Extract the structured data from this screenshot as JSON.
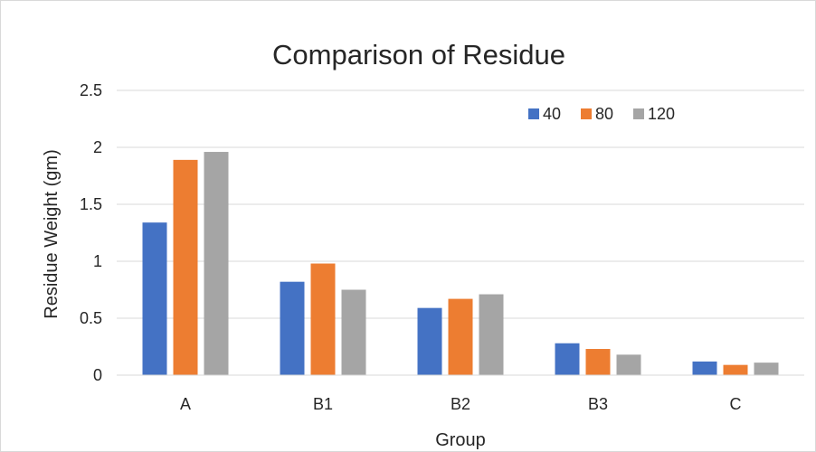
{
  "chart_data": {
    "type": "bar",
    "title": "Comparison of Residue",
    "xlabel": "Group",
    "ylabel": "Residue Weight (gm)",
    "categories": [
      "A",
      "B1",
      "B2",
      "B3",
      "C"
    ],
    "series": [
      {
        "name": "40",
        "values": [
          1.34,
          0.82,
          0.59,
          0.28,
          0.12
        ],
        "color": "#4472C4"
      },
      {
        "name": "80",
        "values": [
          1.89,
          0.98,
          0.67,
          0.23,
          0.09
        ],
        "color": "#ED7D31"
      },
      {
        "name": "120",
        "values": [
          1.96,
          0.75,
          0.71,
          0.18,
          0.11
        ],
        "color": "#A5A5A5"
      }
    ],
    "ylim": [
      0,
      2.5
    ],
    "yticks": [
      "0",
      "0.5",
      "1",
      "1.5",
      "2",
      "2.5"
    ],
    "grid": true,
    "legend_position": "top-right"
  }
}
